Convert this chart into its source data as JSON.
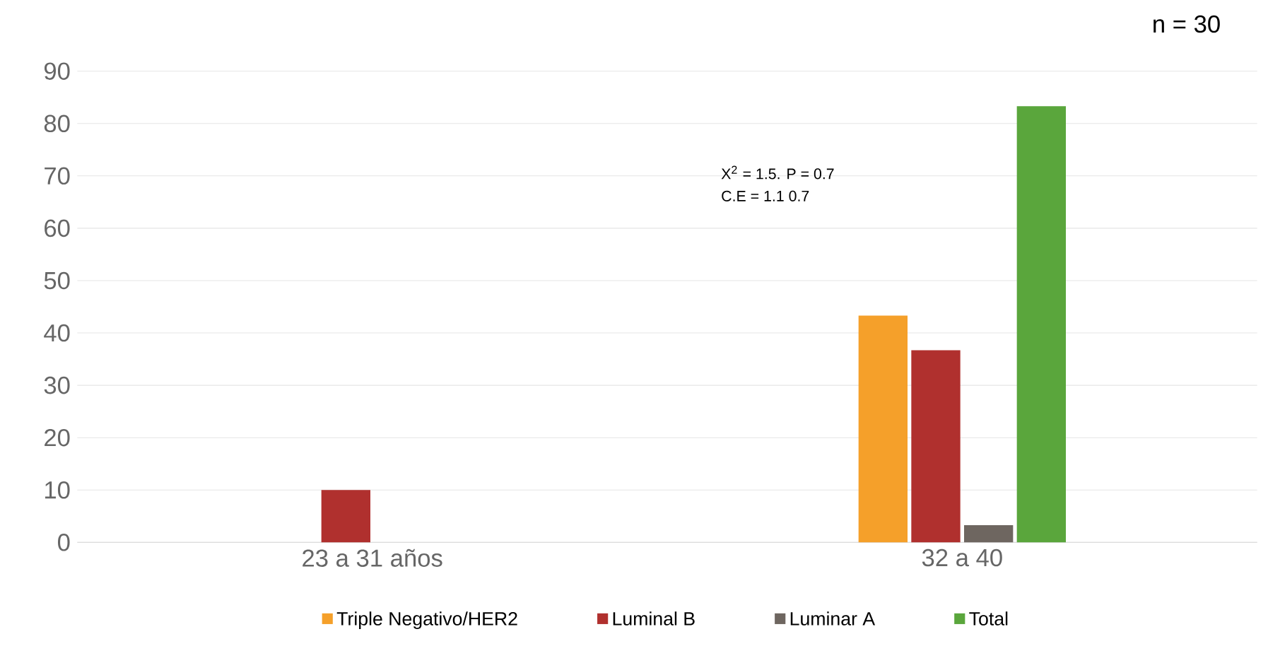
{
  "chart_data": {
    "type": "bar",
    "categories": [
      "23 a 31 años",
      "32 a 40"
    ],
    "series": [
      {
        "name": "Triple Negativo/HER2",
        "color": "#f5a02a",
        "values": [
          null,
          43.3
        ]
      },
      {
        "name": "Luminal B",
        "color": "#b0302e",
        "values": [
          10,
          36.7
        ]
      },
      {
        "name": "Luminar A",
        "color": "#6e6660",
        "values": [
          null,
          3.3
        ]
      },
      {
        "name": "Total",
        "color": "#5aa63c",
        "values": [
          null,
          83.3
        ]
      }
    ],
    "ylim": [
      0,
      90
    ],
    "yticks": [
      0,
      10,
      20,
      30,
      40,
      50,
      60,
      70,
      80,
      90
    ],
    "grid": "y",
    "legend": "bottom",
    "annotations": [
      "n = 30",
      "X$^{2}$ = 1.5.      P = 0.7",
      "C.E = 1.1             0.7"
    ]
  }
}
